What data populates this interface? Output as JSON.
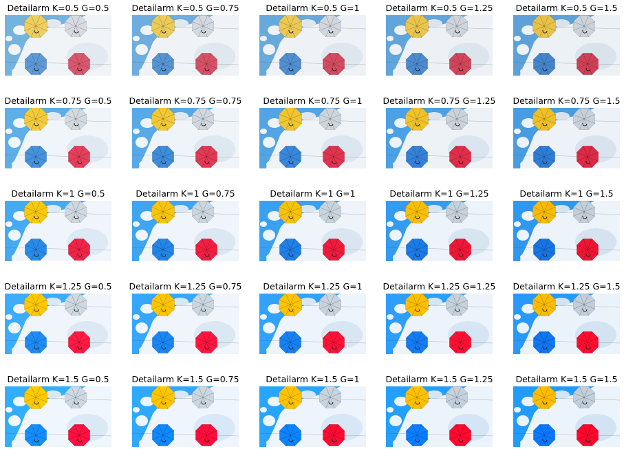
{
  "figure": {
    "rows": [
      {
        "cells": [
          {
            "title": "Detailarm K=0.5 G=0.5",
            "k": 0.5,
            "g": 0.5
          },
          {
            "title": "Detailarm K=0.5 G=0.75",
            "k": 0.5,
            "g": 0.75
          },
          {
            "title": "Detailarm K=0.5 G=1",
            "k": 0.5,
            "g": 1
          },
          {
            "title": "Detailarm K=0.5 G=1.25",
            "k": 0.5,
            "g": 1.25
          },
          {
            "title": "Detailarm K=0.5 G=1.5",
            "k": 0.5,
            "g": 1.5
          }
        ]
      },
      {
        "cells": [
          {
            "title": "Detailarm K=0.75 G=0.5",
            "k": 0.75,
            "g": 0.5
          },
          {
            "title": "Detailarm K=0.75 G=0.75",
            "k": 0.75,
            "g": 0.75
          },
          {
            "title": "Detailarm K=0.75 G=1",
            "k": 0.75,
            "g": 1
          },
          {
            "title": "Detailarm K=0.75 G=1.25",
            "k": 0.75,
            "g": 1.25
          },
          {
            "title": "Detailarm K=0.75 G=1.5",
            "k": 0.75,
            "g": 1.5
          }
        ]
      },
      {
        "cells": [
          {
            "title": "Detailarm K=1 G=0.5",
            "k": 1,
            "g": 0.5
          },
          {
            "title": "Detailarm K=1 G=0.75",
            "k": 1,
            "g": 0.75
          },
          {
            "title": "Detailarm K=1 G=1",
            "k": 1,
            "g": 1
          },
          {
            "title": "Detailarm K=1 G=1.25",
            "k": 1,
            "g": 1.25
          },
          {
            "title": "Detailarm K=1 G=1.5",
            "k": 1,
            "g": 1.5
          }
        ]
      },
      {
        "cells": [
          {
            "title": "Detailarm K=1.25 G=0.5",
            "k": 1.25,
            "g": 0.5
          },
          {
            "title": "Detailarm K=1.25 G=0.75",
            "k": 1.25,
            "g": 0.75
          },
          {
            "title": "Detailarm K=1.25 G=1",
            "k": 1.25,
            "g": 1
          },
          {
            "title": "Detailarm K=1.25 G=1.25",
            "k": 1.25,
            "g": 1.25
          },
          {
            "title": "Detailarm K=1.25 G=1.5",
            "k": 1.25,
            "g": 1.5
          }
        ]
      },
      {
        "cells": [
          {
            "title": "Detailarm K=1.5 G=0.5",
            "k": 1.5,
            "g": 0.5
          },
          {
            "title": "Detailarm K=1.5 G=0.75",
            "k": 1.5,
            "g": 0.75
          },
          {
            "title": "Detailarm K=1.5 G=1",
            "k": 1.5,
            "g": 1
          },
          {
            "title": "Detailarm K=1.5 G=1.25",
            "k": 1.5,
            "g": 1.25
          },
          {
            "title": "Detailarm K=1.5 G=1.5",
            "k": 1.5,
            "g": 1.5
          }
        ]
      }
    ]
  },
  "colors": {
    "sky_blue": "#3aa0f0",
    "cloud_white": "#eef4fa",
    "umbrella_yellow": "#f7c20a",
    "umbrella_grey": "#c9d3dc",
    "umbrella_blue": "#1f7fe6",
    "umbrella_red": "#f01a3c",
    "title_text": "#000000"
  },
  "icons": {
    "yellow_umbrella": "umbrella-icon",
    "grey_umbrella": "umbrella-icon",
    "blue_umbrella": "umbrella-icon",
    "red_umbrella": "umbrella-icon"
  }
}
